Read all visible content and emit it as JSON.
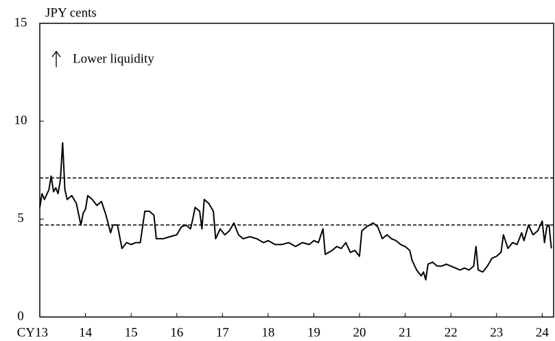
{
  "chart_data": {
    "type": "line",
    "y_unit_label": "JPY cents",
    "annotation": "Lower liquidity",
    "color": "#000000",
    "x": [
      2013.0,
      2013.05,
      2013.1,
      2013.2,
      2013.25,
      2013.3,
      2013.35,
      2013.4,
      2013.45,
      2013.5,
      2013.55,
      2013.6,
      2013.7,
      2013.8,
      2013.9,
      2013.95,
      2014.0,
      2014.05,
      2014.15,
      2014.25,
      2014.35,
      2014.45,
      2014.55,
      2014.6,
      2014.7,
      2014.8,
      2014.9,
      2015.0,
      2015.1,
      2015.2,
      2015.3,
      2015.4,
      2015.5,
      2015.55,
      2015.7,
      2015.85,
      2016.0,
      2016.1,
      2016.2,
      2016.3,
      2016.35,
      2016.4,
      2016.5,
      2016.55,
      2016.6,
      2016.7,
      2016.8,
      2016.85,
      2016.95,
      2017.05,
      2017.15,
      2017.25,
      2017.35,
      2017.45,
      2017.6,
      2017.75,
      2017.9,
      2018.0,
      2018.15,
      2018.3,
      2018.45,
      2018.6,
      2018.75,
      2018.9,
      2019.0,
      2019.1,
      2019.2,
      2019.25,
      2019.4,
      2019.5,
      2019.6,
      2019.7,
      2019.8,
      2019.9,
      2020.0,
      2020.05,
      2020.15,
      2020.3,
      2020.4,
      2020.5,
      2020.6,
      2020.7,
      2020.8,
      2020.9,
      2021.0,
      2021.1,
      2021.15,
      2021.25,
      2021.35,
      2021.4,
      2021.45,
      2021.5,
      2021.6,
      2021.7,
      2021.8,
      2021.9,
      2022.0,
      2022.1,
      2022.2,
      2022.3,
      2022.4,
      2022.5,
      2022.55,
      2022.6,
      2022.7,
      2022.8,
      2022.9,
      2023.0,
      2023.1,
      2023.15,
      2023.25,
      2023.35,
      2023.45,
      2023.55,
      2023.6,
      2023.7,
      2023.8,
      2023.9,
      2024.0,
      2024.05,
      2024.1,
      2024.15,
      2024.2
    ],
    "values": [
      5.6,
      6.3,
      6.0,
      6.5,
      7.2,
      6.4,
      6.6,
      6.3,
      7.0,
      8.9,
      6.5,
      6.0,
      6.2,
      5.8,
      4.7,
      5.3,
      5.5,
      6.2,
      6.0,
      5.7,
      5.9,
      5.2,
      4.3,
      4.7,
      4.7,
      3.5,
      3.8,
      3.7,
      3.8,
      3.8,
      5.4,
      5.4,
      5.2,
      4.0,
      4.0,
      4.1,
      4.2,
      4.6,
      4.7,
      4.5,
      5.0,
      5.6,
      5.4,
      4.5,
      6.0,
      5.8,
      5.4,
      4.0,
      4.5,
      4.2,
      4.4,
      4.8,
      4.2,
      4.0,
      4.1,
      4.0,
      3.8,
      3.9,
      3.7,
      3.7,
      3.8,
      3.6,
      3.8,
      3.7,
      3.9,
      3.8,
      4.5,
      3.2,
      3.4,
      3.6,
      3.5,
      3.8,
      3.3,
      3.4,
      3.1,
      4.4,
      4.6,
      4.8,
      4.6,
      4.0,
      4.2,
      4.0,
      3.9,
      3.7,
      3.6,
      3.4,
      2.9,
      2.4,
      2.1,
      2.3,
      1.9,
      2.7,
      2.8,
      2.6,
      2.6,
      2.7,
      2.6,
      2.5,
      2.4,
      2.5,
      2.4,
      2.6,
      3.6,
      2.4,
      2.3,
      2.6,
      3.0,
      3.1,
      3.3,
      4.2,
      3.5,
      3.8,
      3.7,
      4.3,
      3.9,
      4.7,
      4.2,
      4.4,
      4.9,
      3.8,
      4.6,
      4.7,
      3.5
    ],
    "reference_lines": [
      7.1,
      4.7
    ],
    "xlim": [
      2013,
      2024.25
    ],
    "xticks": [
      {
        "value": 2013,
        "label": "CY13"
      },
      {
        "value": 2014,
        "label": "14"
      },
      {
        "value": 2015,
        "label": "15"
      },
      {
        "value": 2016,
        "label": "16"
      },
      {
        "value": 2017,
        "label": "17"
      },
      {
        "value": 2018,
        "label": "18"
      },
      {
        "value": 2019,
        "label": "19"
      },
      {
        "value": 2020,
        "label": "20"
      },
      {
        "value": 2021,
        "label": "21"
      },
      {
        "value": 2022,
        "label": "22"
      },
      {
        "value": 2023,
        "label": "23"
      },
      {
        "value": 2024,
        "label": "24"
      }
    ],
    "ylim": [
      0,
      15
    ],
    "yticks": [
      0,
      5,
      10,
      15
    ]
  }
}
